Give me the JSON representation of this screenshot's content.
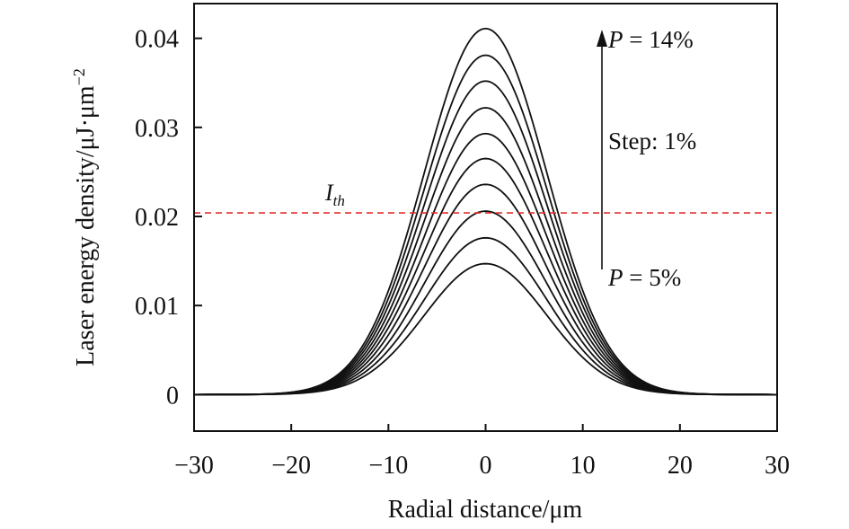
{
  "chart_data": {
    "type": "line",
    "xlabel": "Radial distance/μm",
    "ylabel_main": "Laser energy density/μJ·μm",
    "ylabel_sup": "−2",
    "xlim": [
      -30,
      30
    ],
    "ylim": [
      -0.0041,
      0.0439
    ],
    "xticks": [
      -30,
      -20,
      -10,
      0,
      10,
      20,
      30
    ],
    "xtick_labels": [
      "−30",
      "−20",
      "−10",
      "0",
      "10",
      "20",
      "30"
    ],
    "yticks": [
      0,
      0.01,
      0.02,
      0.03,
      0.04
    ],
    "ytick_labels": [
      "0",
      "0.01",
      "0.02",
      "0.03",
      "0.04"
    ],
    "grid": false,
    "profile": "gaussian",
    "beam_radius_um": 12.6,
    "series": [
      {
        "P_percent": 5,
        "peak": 0.0147
      },
      {
        "P_percent": 6,
        "peak": 0.0176
      },
      {
        "P_percent": 7,
        "peak": 0.0206
      },
      {
        "P_percent": 8,
        "peak": 0.0236
      },
      {
        "P_percent": 9,
        "peak": 0.0265
      },
      {
        "P_percent": 10,
        "peak": 0.0293
      },
      {
        "P_percent": 11,
        "peak": 0.0322
      },
      {
        "P_percent": 12,
        "peak": 0.0352
      },
      {
        "P_percent": 13,
        "peak": 0.0381
      },
      {
        "P_percent": 14,
        "peak": 0.0411
      }
    ],
    "threshold": {
      "value": 0.0204,
      "label_main": "I",
      "label_sub": "th",
      "color": "#e0302e"
    },
    "annotations": {
      "top_P": "P",
      "top_value": " = 14%",
      "step": "Step: 1%",
      "bottom_P": "P",
      "bottom_value": " = 5%"
    },
    "line_color": "#111111"
  }
}
